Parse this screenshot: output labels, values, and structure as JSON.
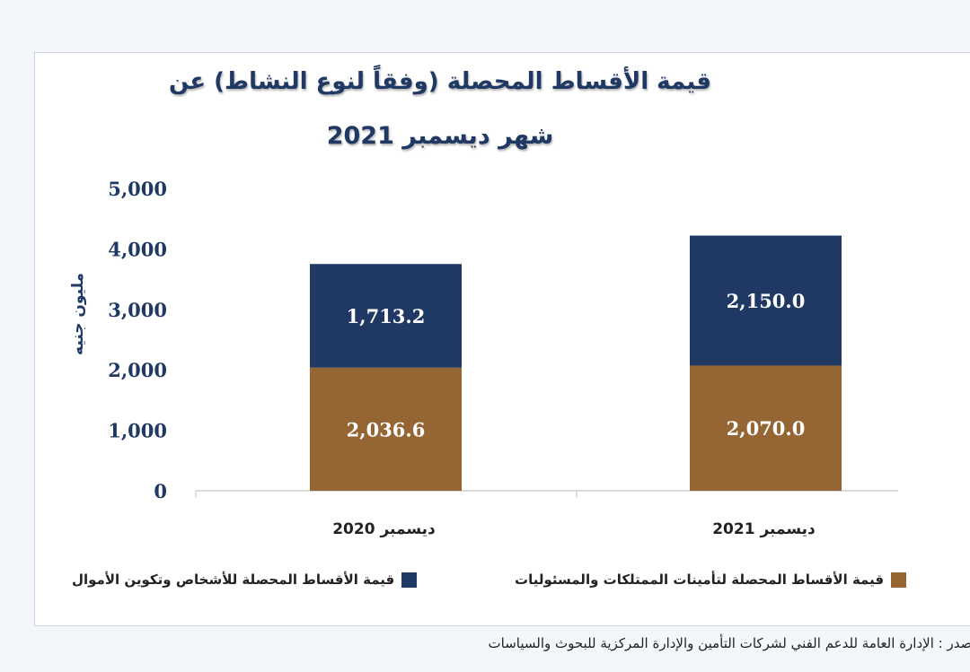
{
  "chart_data": {
    "type": "bar",
    "stacked": true,
    "title_line1": "قيمة الأقساط المحصلة (وفقاً لنوع النشاط) عن",
    "title_line2": "شهر ديسمبر 2021",
    "ylabel": "مليون جنيه",
    "ylim": [
      0,
      5000
    ],
    "yticks": [
      "0",
      "1,000",
      "2,000",
      "3,000",
      "4,000",
      "5,000"
    ],
    "grid": false,
    "categories": [
      "ديسمبر 2020",
      "ديسمبر 2021"
    ],
    "series": [
      {
        "name": "قيمة الأقساط المحصلة  لتأمينات الممتلكات والمسئوليات",
        "values": [
          2036.6,
          2070.0
        ],
        "labels": [
          "2,036.6",
          "2,070.0"
        ],
        "color": "#956534"
      },
      {
        "name": "قيمة الأقساط المحصلة للأشخاص وتكوين الأموال",
        "values": [
          1713.2,
          2150.0
        ],
        "labels": [
          "1,713.2",
          "2,150.0"
        ],
        "color": "#1f3864"
      }
    ],
    "legend_position": "bottom"
  },
  "source": "المصدر : الإدارة العامة للدعم الفني لشركات التأمين والإدارة المركزية للبحوث والسياسات"
}
